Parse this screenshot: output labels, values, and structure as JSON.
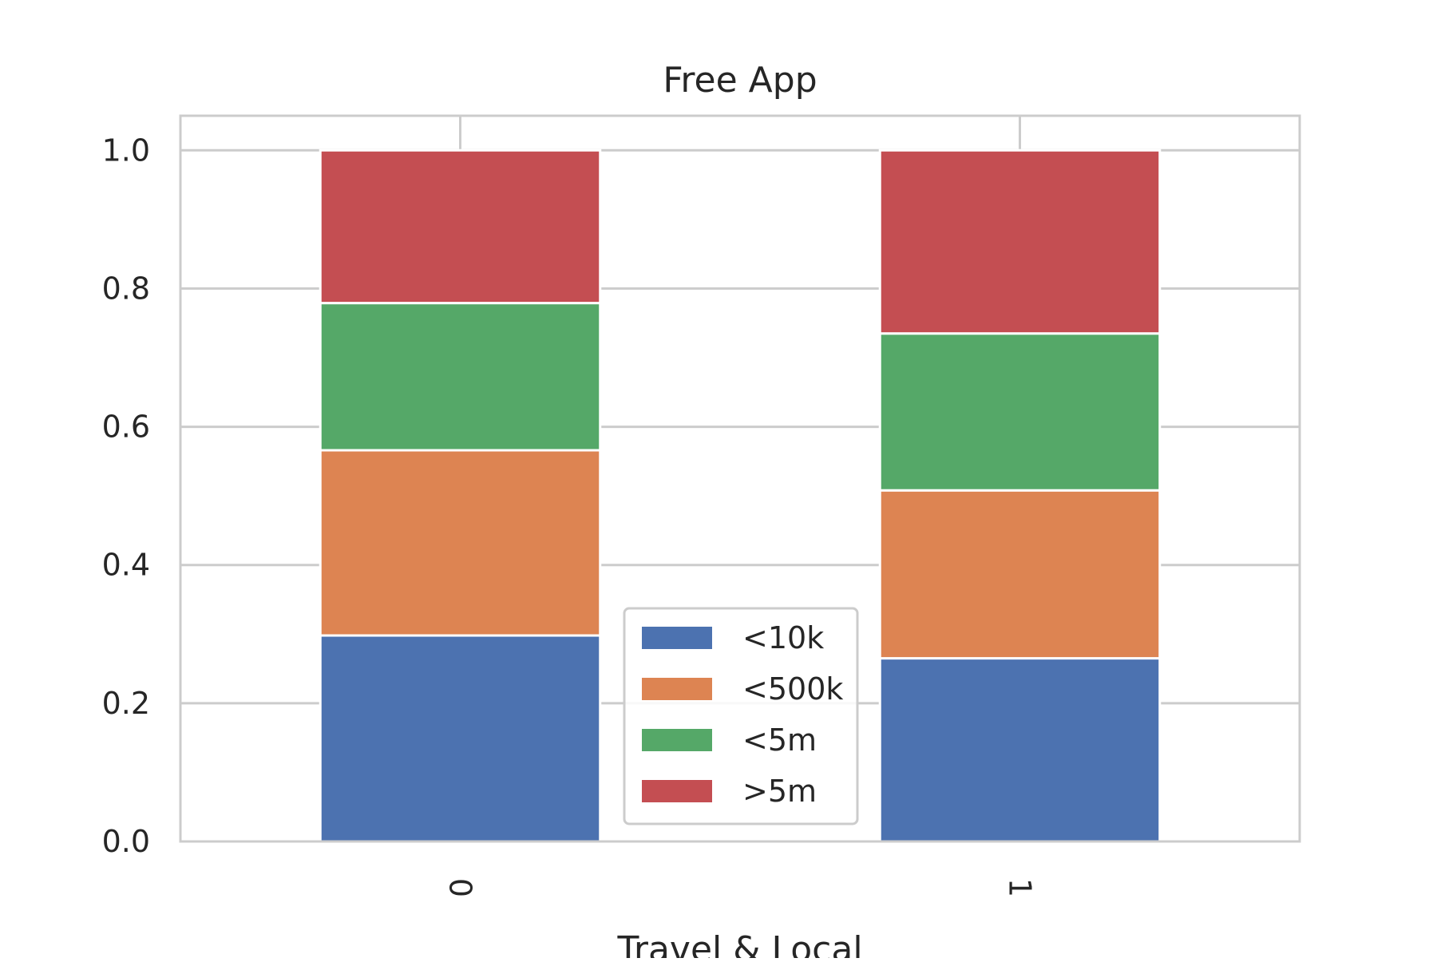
{
  "chart_data": {
    "type": "bar",
    "stacked": true,
    "title": "Free App",
    "xlabel": "Travel & Local",
    "ylabel": "",
    "categories": [
      "0",
      "1"
    ],
    "ylim": [
      0,
      1.05
    ],
    "yticks": [
      "0.0",
      "0.2",
      "0.4",
      "0.6",
      "0.8",
      "1.0"
    ],
    "series": [
      {
        "name": "<10k",
        "color": "#4c72b0",
        "values": [
          0.298,
          0.265
        ]
      },
      {
        "name": "<500k",
        "color": "#dd8452",
        "values": [
          0.268,
          0.243
        ]
      },
      {
        "name": "<5m",
        "color": "#55a868",
        "values": [
          0.213,
          0.227
        ]
      },
      {
        "name": ">5m",
        "color": "#c44e52",
        "values": [
          0.221,
          0.265
        ]
      }
    ],
    "grid": true,
    "legend_position": "lower center"
  }
}
